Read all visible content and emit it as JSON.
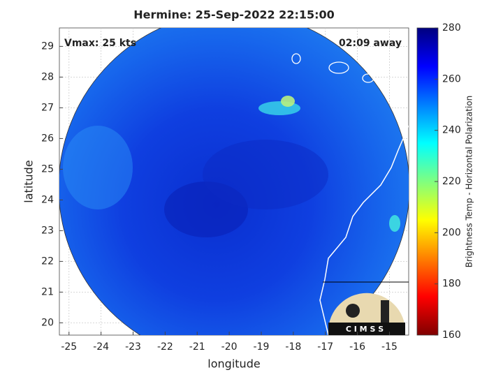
{
  "chart_data": {
    "type": "map",
    "title": "Hermine: 25-Sep-2022 22:15:00",
    "xlabel": "longitude",
    "ylabel": "latitude",
    "annotations": [
      "Vmax: 25 kts",
      "02:09 away"
    ],
    "xlim": [
      -25.3,
      -14.4
    ],
    "xticks": [
      -25,
      -24,
      -23,
      -22,
      -21,
      -20,
      -19,
      -18,
      -17,
      -16,
      -15
    ],
    "ylim": [
      19.6,
      29.6
    ],
    "yticks": [
      20,
      21,
      22,
      23,
      24,
      25,
      26,
      27,
      28,
      29
    ],
    "grid": true,
    "colorbar": {
      "label": "Brightness Temp - Horizontal Polarization",
      "lim": [
        160,
        280
      ],
      "ticks": [
        160,
        180,
        200,
        220,
        240,
        260,
        280
      ],
      "colormap": "jet_r"
    },
    "logo": "C I M S S"
  }
}
